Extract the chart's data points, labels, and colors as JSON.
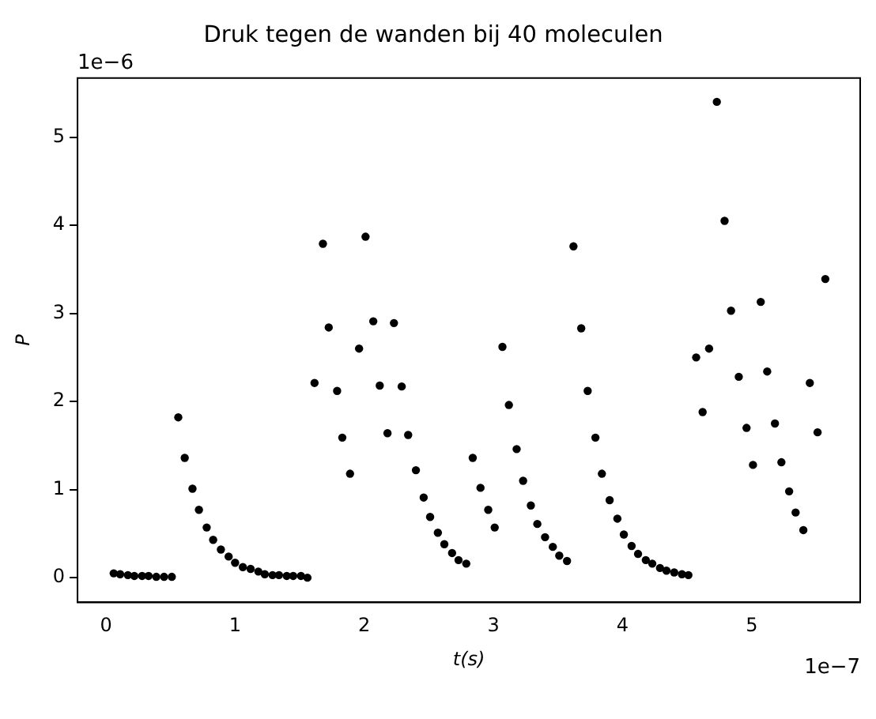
{
  "chart_data": {
    "type": "scatter",
    "title": "Druk tegen de wanden bij 40 moleculen",
    "xlabel": "t(s)",
    "ylabel": "P",
    "x": [
      0.06,
      0.11,
      0.17,
      0.22,
      0.28,
      0.33,
      0.39,
      0.45,
      0.51,
      0.56,
      0.61,
      0.67,
      0.72,
      0.78,
      0.83,
      0.89,
      0.95,
      1.0,
      1.06,
      1.12,
      1.18,
      1.23,
      1.29,
      1.34,
      1.4,
      1.45,
      1.51,
      1.56,
      1.615,
      1.68,
      1.725,
      1.79,
      1.83,
      1.89,
      1.96,
      2.01,
      2.07,
      2.12,
      2.18,
      2.23,
      2.29,
      2.34,
      2.4,
      2.46,
      2.51,
      2.57,
      2.62,
      2.68,
      2.73,
      2.79,
      2.84,
      2.9,
      2.96,
      3.01,
      3.07,
      3.12,
      3.18,
      3.23,
      3.29,
      3.34,
      3.4,
      3.46,
      3.51,
      3.57,
      3.62,
      3.68,
      3.73,
      3.79,
      3.84,
      3.9,
      3.96,
      4.01,
      4.07,
      4.12,
      4.18,
      4.23,
      4.29,
      4.34,
      4.4,
      4.46,
      4.51,
      4.57,
      4.62,
      4.67,
      4.73,
      4.79,
      4.84,
      4.9,
      4.96,
      5.01,
      5.07,
      5.12,
      5.18,
      5.23,
      5.29,
      5.34,
      5.4,
      5.45,
      5.51,
      5.57
    ],
    "series": [
      {
        "color": "#000000",
        "values": [
          0.05,
          0.04,
          0.03,
          0.02,
          0.02,
          0.02,
          0.01,
          0.01,
          0.01,
          1.82,
          1.36,
          1.01,
          0.77,
          0.57,
          0.43,
          0.32,
          0.24,
          0.17,
          0.12,
          0.1,
          0.07,
          0.04,
          0.03,
          0.03,
          0.02,
          0.02,
          0.02,
          0,
          2.21,
          3.79,
          2.84,
          2.12,
          1.59,
          1.18,
          2.6,
          3.87,
          2.91,
          2.18,
          1.64,
          2.89,
          2.17,
          1.62,
          1.22,
          0.91,
          0.69,
          0.51,
          0.38,
          0.28,
          0.2,
          0.16,
          1.36,
          1.02,
          0.77,
          0.57,
          2.62,
          1.96,
          1.46,
          1.1,
          0.82,
          0.61,
          0.46,
          0.35,
          0.25,
          0.19,
          3.76,
          2.83,
          2.12,
          1.59,
          1.18,
          0.88,
          0.67,
          0.49,
          0.36,
          0.27,
          0.2,
          0.16,
          0.11,
          0.08,
          0.06,
          0.04,
          0.03,
          2.5,
          1.88,
          2.6,
          5.4,
          4.05,
          3.03,
          2.28,
          1.7,
          1.28,
          3.13,
          2.34,
          1.75,
          1.31,
          0.98,
          0.74,
          0.54,
          2.21,
          1.65,
          3.39
        ]
      }
    ],
    "marker": "circle",
    "xlim": [
      -0.22,
      5.84
    ],
    "xticks": [
      0,
      1,
      2,
      3,
      4,
      5
    ],
    "ylim": [
      -0.28,
      5.67
    ],
    "yticks": [
      0,
      1,
      2,
      3,
      4,
      5
    ],
    "annotations": [
      "1e−6",
      "1e−7"
    ],
    "grid": false,
    "legend": false
  }
}
